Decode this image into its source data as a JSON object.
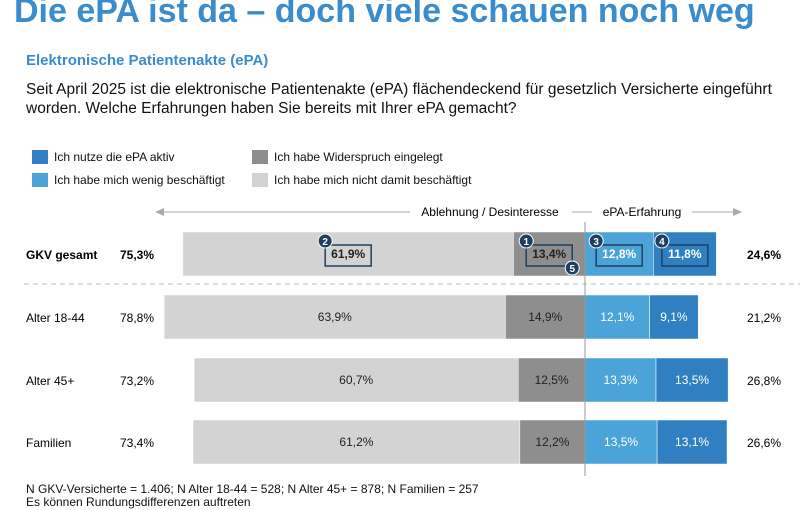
{
  "title": "Die ePA ist da – doch viele schauen noch weg",
  "subtitle": "Elektronische Patientenakte (ePA)",
  "question": "Seit April 2025 ist die elektronische Patientenakte (ePA) flächendeckend für gesetzlich Versicherte eingeführt worden. Welche Erfahrungen haben Sie bereits mit Ihrer ePA gemacht?",
  "footnote": [
    "N GKV-Versicherte = 1.406; N Alter 18-44 = 528; N Alter 45+ = 878; N Familien = 257",
    "Es können Rundungsdifferenzen auftreten"
  ],
  "chart_data": {
    "type": "bar",
    "orientation": "horizontal-diverging-stacked",
    "axis_left_label": "Ablehnung / Desinteresse",
    "axis_right_label": "ePA-Erfahrung",
    "legend": [
      {
        "name": "Ich nutze die ePA aktiv",
        "color": "#2f7fc1"
      },
      {
        "name": "Ich habe mich wenig beschäftigt",
        "color": "#4ba3d8"
      },
      {
        "name": "Ich habe Widerspruch eingelegt",
        "color": "#8e8e8e"
      },
      {
        "name": "Ich habe mich nicht damit beschäftigt",
        "color": "#d3d3d3"
      }
    ],
    "categories": [
      "GKV gesamt",
      "Alter 18-44",
      "Alter 45+",
      "Familien"
    ],
    "left_totals": [
      "75,3%",
      "78,8%",
      "73,2%",
      "73,4%"
    ],
    "right_totals": [
      "24,6%",
      "21,2%",
      "26,8%",
      "26,6%"
    ],
    "series": [
      {
        "name": "Ich habe mich nicht damit beschäftigt",
        "side": "left",
        "values": [
          61.9,
          63.9,
          60.7,
          61.2
        ],
        "labels": [
          "61,9%",
          "63,9%",
          "60,7%",
          "61,2%"
        ]
      },
      {
        "name": "Ich habe Widerspruch eingelegt",
        "side": "left",
        "values": [
          13.4,
          14.9,
          12.5,
          12.2
        ],
        "labels": [
          "13,4%",
          "14,9%",
          "12,5%",
          "12,2%"
        ]
      },
      {
        "name": "Ich habe mich wenig beschäftigt",
        "side": "right",
        "values": [
          12.8,
          12.1,
          13.3,
          13.5
        ],
        "labels": [
          "12,8%",
          "12,1%",
          "13,3%",
          "13,5%"
        ]
      },
      {
        "name": "Ich nutze die ePA aktiv",
        "side": "right",
        "values": [
          11.8,
          9.1,
          13.5,
          13.1
        ],
        "labels": [
          "11,8%",
          "9,1%",
          "13,5%",
          "13,1%"
        ]
      }
    ],
    "markers": [
      "1",
      "2",
      "3",
      "4",
      "5"
    ]
  }
}
